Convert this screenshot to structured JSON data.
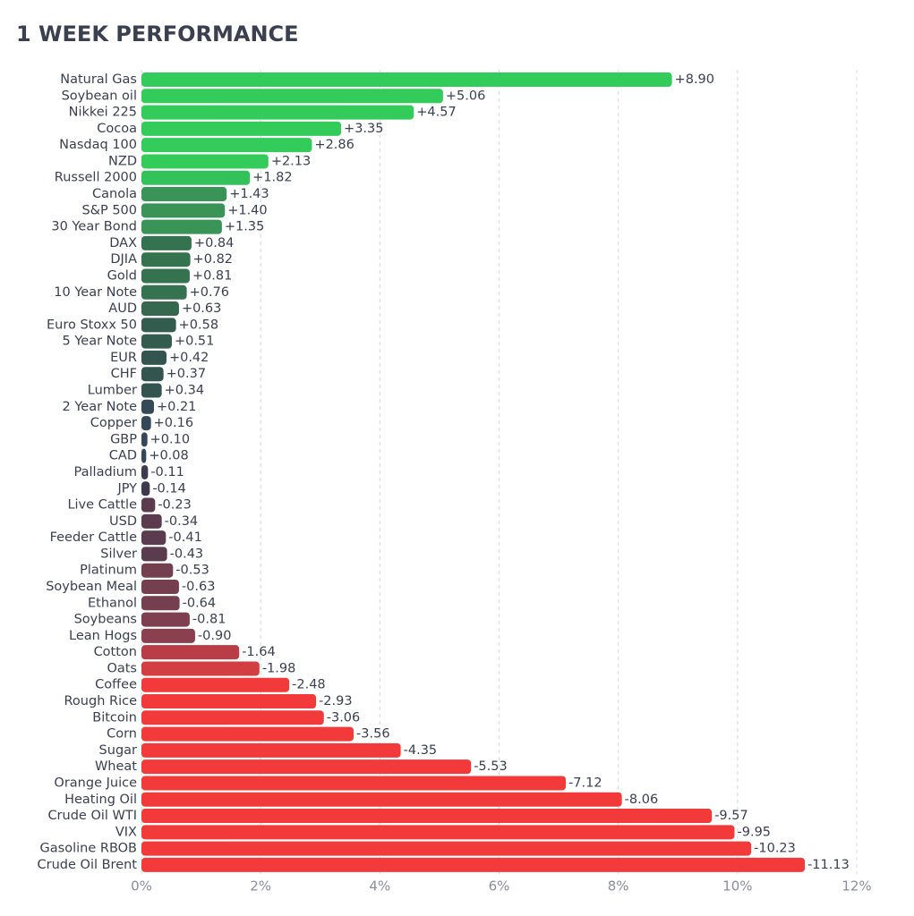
{
  "chart_data": {
    "type": "hbar",
    "title": "1 WEEK PERFORMANCE",
    "categories": [
      "Natural Gas",
      "Soybean oil",
      "Nikkei 225",
      "Cocoa",
      "Nasdaq 100",
      "NZD",
      "Russell 2000",
      "Canola",
      "S&P 500",
      "30 Year Bond",
      "DAX",
      "DJIA",
      "Gold",
      "10 Year Note",
      "AUD",
      "Euro Stoxx 50",
      "5 Year Note",
      "EUR",
      "CHF",
      "Lumber",
      "2 Year Note",
      "Copper",
      "GBP",
      "CAD",
      "Palladium",
      "JPY",
      "Live Cattle",
      "USD",
      "Feeder Cattle",
      "Silver",
      "Platinum",
      "Soybean Meal",
      "Ethanol",
      "Soybeans",
      "Lean Hogs",
      "Cotton",
      "Oats",
      "Coffee",
      "Rough Rice",
      "Bitcoin",
      "Corn",
      "Sugar",
      "Wheat",
      "Orange Juice",
      "Heating Oil",
      "Crude Oil WTI",
      "VIX",
      "Gasoline RBOB",
      "Crude Oil Brent"
    ],
    "values": [
      8.9,
      5.06,
      4.57,
      3.35,
      2.86,
      2.13,
      1.82,
      1.43,
      1.4,
      1.35,
      0.84,
      0.82,
      0.81,
      0.76,
      0.63,
      0.58,
      0.51,
      0.42,
      0.37,
      0.34,
      0.21,
      0.16,
      0.1,
      0.08,
      -0.11,
      -0.14,
      -0.23,
      -0.34,
      -0.41,
      -0.43,
      -0.53,
      -0.63,
      -0.64,
      -0.81,
      -0.9,
      -1.64,
      -1.98,
      -2.48,
      -2.93,
      -3.06,
      -3.56,
      -4.35,
      -5.53,
      -7.12,
      -8.06,
      -9.57,
      -9.95,
      -10.23,
      -11.13
    ],
    "value_labels": [
      "+8.90",
      "+5.06",
      "+4.57",
      "+3.35",
      "+2.86",
      "+2.13",
      "+1.82",
      "+1.43",
      "+1.40",
      "+1.35",
      "+0.84",
      "+0.82",
      "+0.81",
      "+0.76",
      "+0.63",
      "+0.58",
      "+0.51",
      "+0.42",
      "+0.37",
      "+0.34",
      "+0.21",
      "+0.16",
      "+0.10",
      "+0.08",
      "-0.11",
      "-0.14",
      "-0.23",
      "-0.34",
      "-0.41",
      "-0.43",
      "-0.53",
      "-0.63",
      "-0.64",
      "-0.81",
      "-0.90",
      "-1.64",
      "-1.98",
      "-2.48",
      "-2.93",
      "-3.06",
      "-3.56",
      "-4.35",
      "-5.53",
      "-7.12",
      "-8.06",
      "-9.57",
      "-9.95",
      "-10.23",
      "-11.13"
    ],
    "colors": [
      "#33cc5a",
      "#33cc5a",
      "#33cc5a",
      "#33cc5a",
      "#33cc5a",
      "#33cc5a",
      "#33c259",
      "#3a9458",
      "#3a9458",
      "#3a9458",
      "#35724f",
      "#35724f",
      "#35724f",
      "#35724f",
      "#35684f",
      "#345c4e",
      "#345c4e",
      "#34544f",
      "#34544f",
      "#34544f",
      "#344a56",
      "#34485a",
      "#34485a",
      "#34485a",
      "#3e3a4e",
      "#3e3a4e",
      "#5a3c4e",
      "#5a3c4e",
      "#5a3c4e",
      "#5a3c4e",
      "#74404f",
      "#74404f",
      "#74404f",
      "#7e404f",
      "#8a404f",
      "#b83d47",
      "#d33e42",
      "#f23a3a",
      "#f23a3a",
      "#f23a3a",
      "#f23a3a",
      "#f23a3a",
      "#f23a3a",
      "#f23a3a",
      "#f23a3a",
      "#f23a3a",
      "#f23a3a",
      "#f23a3a",
      "#f23a3a"
    ],
    "xlim": [
      0,
      12
    ],
    "xticks": [
      {
        "value": 0,
        "label": "0%"
      },
      {
        "value": 2,
        "label": "2%"
      },
      {
        "value": 4,
        "label": "4%"
      },
      {
        "value": 6,
        "label": "6%"
      },
      {
        "value": 8,
        "label": "8%"
      },
      {
        "value": 10,
        "label": "10%"
      },
      {
        "value": 12,
        "label": "12%"
      }
    ],
    "grid": true
  }
}
